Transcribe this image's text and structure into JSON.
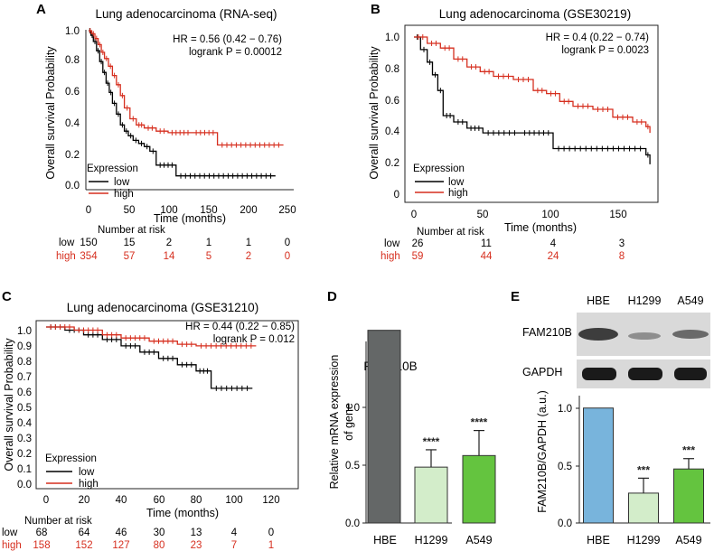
{
  "colors": {
    "low": "#000000",
    "high": "#d62f1f",
    "hbe": "#646767",
    "h1299": "#d3edca",
    "a549": "#64c43f",
    "hbe_e": "#78b4dc",
    "blot_bg": "#d9d9d9"
  },
  "panels": {
    "A": "A",
    "B": "B",
    "C": "C",
    "D": "D",
    "E": "E"
  },
  "chart_data": [
    {
      "type": "line",
      "panel": "A",
      "title": "Lung adenocarcinoma (RNA-seq)",
      "xlabel": "Time (months)",
      "ylabel": "Overall survival Probability",
      "xlim": [
        0,
        250
      ],
      "ylim": [
        0,
        1
      ],
      "xticks": [
        "0",
        "50",
        "100",
        "150",
        "200",
        "250"
      ],
      "yticks": [
        "0.0",
        "0.2",
        "0.4",
        "0.6",
        "0.8",
        "1.0"
      ],
      "hr": "HR = 0.56 (0.42 − 0.76)",
      "logrank": "logrank P = 0.00012",
      "legend_title": "Expression",
      "series": [
        {
          "name": "low",
          "points": [
            [
              0,
              1
            ],
            [
              3,
              0.97
            ],
            [
              6,
              0.93
            ],
            [
              10,
              0.87
            ],
            [
              14,
              0.8
            ],
            [
              18,
              0.73
            ],
            [
              22,
              0.66
            ],
            [
              26,
              0.6
            ],
            [
              30,
              0.53
            ],
            [
              35,
              0.46
            ],
            [
              40,
              0.39
            ],
            [
              45,
              0.35
            ],
            [
              50,
              0.32
            ],
            [
              56,
              0.29
            ],
            [
              63,
              0.27
            ],
            [
              70,
              0.25
            ],
            [
              77,
              0.22
            ],
            [
              85,
              0.13
            ],
            [
              110,
              0.06
            ],
            [
              235,
              0.06
            ]
          ]
        },
        {
          "name": "high",
          "points": [
            [
              0,
              1
            ],
            [
              4,
              0.98
            ],
            [
              8,
              0.95
            ],
            [
              12,
              0.91
            ],
            [
              16,
              0.86
            ],
            [
              20,
              0.82
            ],
            [
              25,
              0.77
            ],
            [
              30,
              0.71
            ],
            [
              35,
              0.65
            ],
            [
              40,
              0.58
            ],
            [
              45,
              0.5
            ],
            [
              52,
              0.43
            ],
            [
              60,
              0.39
            ],
            [
              70,
              0.37
            ],
            [
              85,
              0.35
            ],
            [
              100,
              0.34
            ],
            [
              130,
              0.34
            ],
            [
              162,
              0.26
            ],
            [
              245,
              0.26
            ]
          ]
        }
      ],
      "risk_header": "Number at risk",
      "risk_times": [
        "0",
        "50",
        "100",
        "150",
        "200",
        "250"
      ],
      "risk_rows": [
        {
          "label": "low",
          "values": [
            "150",
            "15",
            "2",
            "1",
            "1",
            "0"
          ]
        },
        {
          "label": "high",
          "values": [
            "354",
            "57",
            "14",
            "5",
            "2",
            "0"
          ]
        }
      ]
    },
    {
      "type": "line",
      "panel": "B",
      "title": "Lung adenocarcinoma (GSE30219)",
      "xlabel": "Time (months)",
      "ylabel": "Overall survival Probability",
      "xlim": [
        0,
        180
      ],
      "ylim": [
        0,
        1
      ],
      "xticks": [
        "0",
        "50",
        "100",
        "150"
      ],
      "yticks": [
        "0",
        "0.2",
        "0.4",
        "0.6",
        "0.8",
        "1.0"
      ],
      "hr": "HR = 0.4 (0.22 − 0.74)",
      "logrank": "logrank P = 0.0023",
      "legend_title": "Expression",
      "series": [
        {
          "name": "low",
          "points": [
            [
              0,
              1
            ],
            [
              5,
              0.92
            ],
            [
              10,
              0.84
            ],
            [
              14,
              0.76
            ],
            [
              18,
              0.66
            ],
            [
              22,
              0.5
            ],
            [
              30,
              0.46
            ],
            [
              40,
              0.42
            ],
            [
              52,
              0.39
            ],
            [
              80,
              0.39
            ],
            [
              105,
              0.29
            ],
            [
              175,
              0.25
            ],
            [
              178,
              0.19
            ]
          ]
        },
        {
          "name": "high",
          "points": [
            [
              0,
              1
            ],
            [
              10,
              0.96
            ],
            [
              20,
              0.93
            ],
            [
              30,
              0.86
            ],
            [
              40,
              0.81
            ],
            [
              50,
              0.78
            ],
            [
              60,
              0.75
            ],
            [
              75,
              0.73
            ],
            [
              90,
              0.66
            ],
            [
              100,
              0.64
            ],
            [
              110,
              0.59
            ],
            [
              120,
              0.56
            ],
            [
              135,
              0.54
            ],
            [
              150,
              0.49
            ],
            [
              165,
              0.46
            ],
            [
              175,
              0.43
            ],
            [
              178,
              0.39
            ]
          ]
        }
      ],
      "risk_header": "Number at risk",
      "risk_times": [
        "0",
        "50",
        "100",
        "150"
      ],
      "risk_rows": [
        {
          "label": "low",
          "values": [
            "26",
            "11",
            "4",
            "3"
          ]
        },
        {
          "label": "high",
          "values": [
            "59",
            "44",
            "24",
            "8"
          ]
        }
      ]
    },
    {
      "type": "line",
      "panel": "C",
      "title": "Lung adenocarcinoma (GSE31210)",
      "xlabel": "Time (months)",
      "ylabel": "Overall survival Probability",
      "xlim": [
        0,
        120
      ],
      "ylim": [
        0,
        1
      ],
      "xticks": [
        "0",
        "20",
        "40",
        "60",
        "80",
        "100",
        "120"
      ],
      "yticks": [
        "0.0",
        "0.1",
        "0.2",
        "0.3",
        "0.4",
        "0.5",
        "0.6",
        "0.7",
        "0.8",
        "0.9",
        "1.0"
      ],
      "hr": "HR = 0.44 (0.22 − 0.85)",
      "logrank": "logrank P = 0.012",
      "legend_title": "Expression",
      "series": [
        {
          "name": "low",
          "points": [
            [
              0,
              1
            ],
            [
              10,
              0.98
            ],
            [
              20,
              0.95
            ],
            [
              30,
              0.92
            ],
            [
              40,
              0.88
            ],
            [
              50,
              0.84
            ],
            [
              60,
              0.8
            ],
            [
              70,
              0.76
            ],
            [
              80,
              0.72
            ],
            [
              88,
              0.61
            ],
            [
              110,
              0.61
            ]
          ]
        },
        {
          "name": "high",
          "points": [
            [
              0,
              1
            ],
            [
              15,
              0.98
            ],
            [
              30,
              0.95
            ],
            [
              40,
              0.93
            ],
            [
              55,
              0.91
            ],
            [
              70,
              0.89
            ],
            [
              80,
              0.88
            ],
            [
              112,
              0.88
            ]
          ]
        }
      ],
      "risk_header": "Number at risk",
      "risk_times": [
        "0",
        "20",
        "40",
        "60",
        "80",
        "100",
        "120"
      ],
      "risk_rows": [
        {
          "label": "low",
          "values": [
            "68",
            "64",
            "46",
            "30",
            "13",
            "4",
            "0"
          ]
        },
        {
          "label": "high",
          "values": [
            "158",
            "152",
            "127",
            "80",
            "23",
            "7",
            "1"
          ]
        }
      ]
    },
    {
      "type": "bar",
      "panel": "D",
      "title": "FAM210B",
      "ylabel_line1": "Relative mRNA expression",
      "ylabel_line2": "of gene",
      "ylim": [
        0,
        1.5
      ],
      "yticks": [
        "0.0",
        "0.5",
        "1.0"
      ],
      "categories": [
        "HBE",
        "H1299",
        "A549"
      ],
      "values": [
        1.0,
        0.29,
        0.35
      ],
      "errors": [
        0,
        0.09,
        0.13
      ],
      "significance": [
        "",
        "****",
        "****"
      ]
    },
    {
      "type": "bar",
      "panel": "E",
      "ylabel": "FAM210B/GAPDH (a.u.)",
      "ylim": [
        0,
        1.1
      ],
      "yticks": [
        "0.0",
        "0.5",
        "1.0"
      ],
      "categories": [
        "HBE",
        "H1299",
        "A549"
      ],
      "values": [
        1.0,
        0.26,
        0.47
      ],
      "errors": [
        0,
        0.13,
        0.09
      ],
      "significance": [
        "",
        "***",
        "***"
      ],
      "blot_lanes": [
        "HBE",
        "H1299",
        "A549"
      ],
      "blot_rows": [
        "FAM210B",
        "GAPDH"
      ]
    }
  ]
}
